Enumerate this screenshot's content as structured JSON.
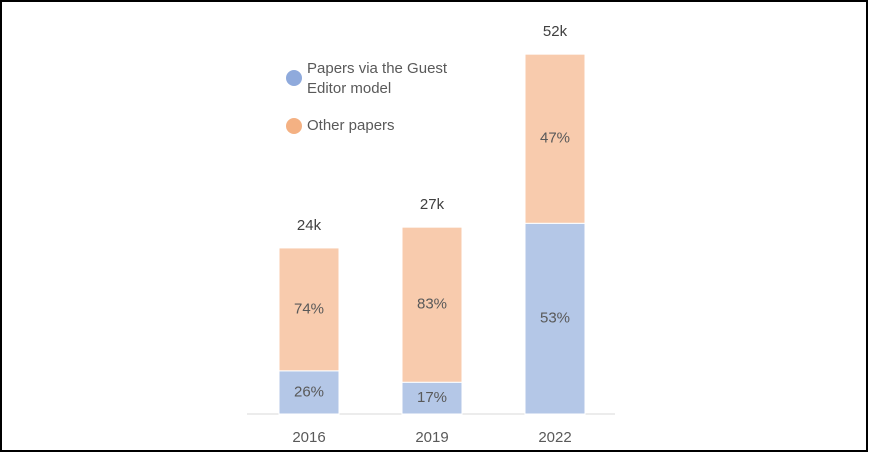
{
  "chart_data": {
    "type": "bar",
    "stacked": true,
    "categories": [
      "2016",
      "2019",
      "2022"
    ],
    "series": [
      {
        "name": "Papers via the Guest Editor model",
        "color": "#b4c7e7",
        "legend_color": "#8faadc",
        "values": [
          26,
          17,
          53
        ],
        "value_labels": [
          "26%",
          "17%",
          "53%"
        ]
      },
      {
        "name": "Other papers",
        "color": "#f8cbad",
        "legend_color": "#f4b183",
        "values": [
          74,
          83,
          47
        ],
        "value_labels": [
          "74%",
          "83%",
          "47%"
        ]
      }
    ],
    "totals": {
      "values": [
        24,
        27,
        52
      ],
      "value_labels": [
        "24k",
        "27k",
        "52k"
      ]
    }
  }
}
